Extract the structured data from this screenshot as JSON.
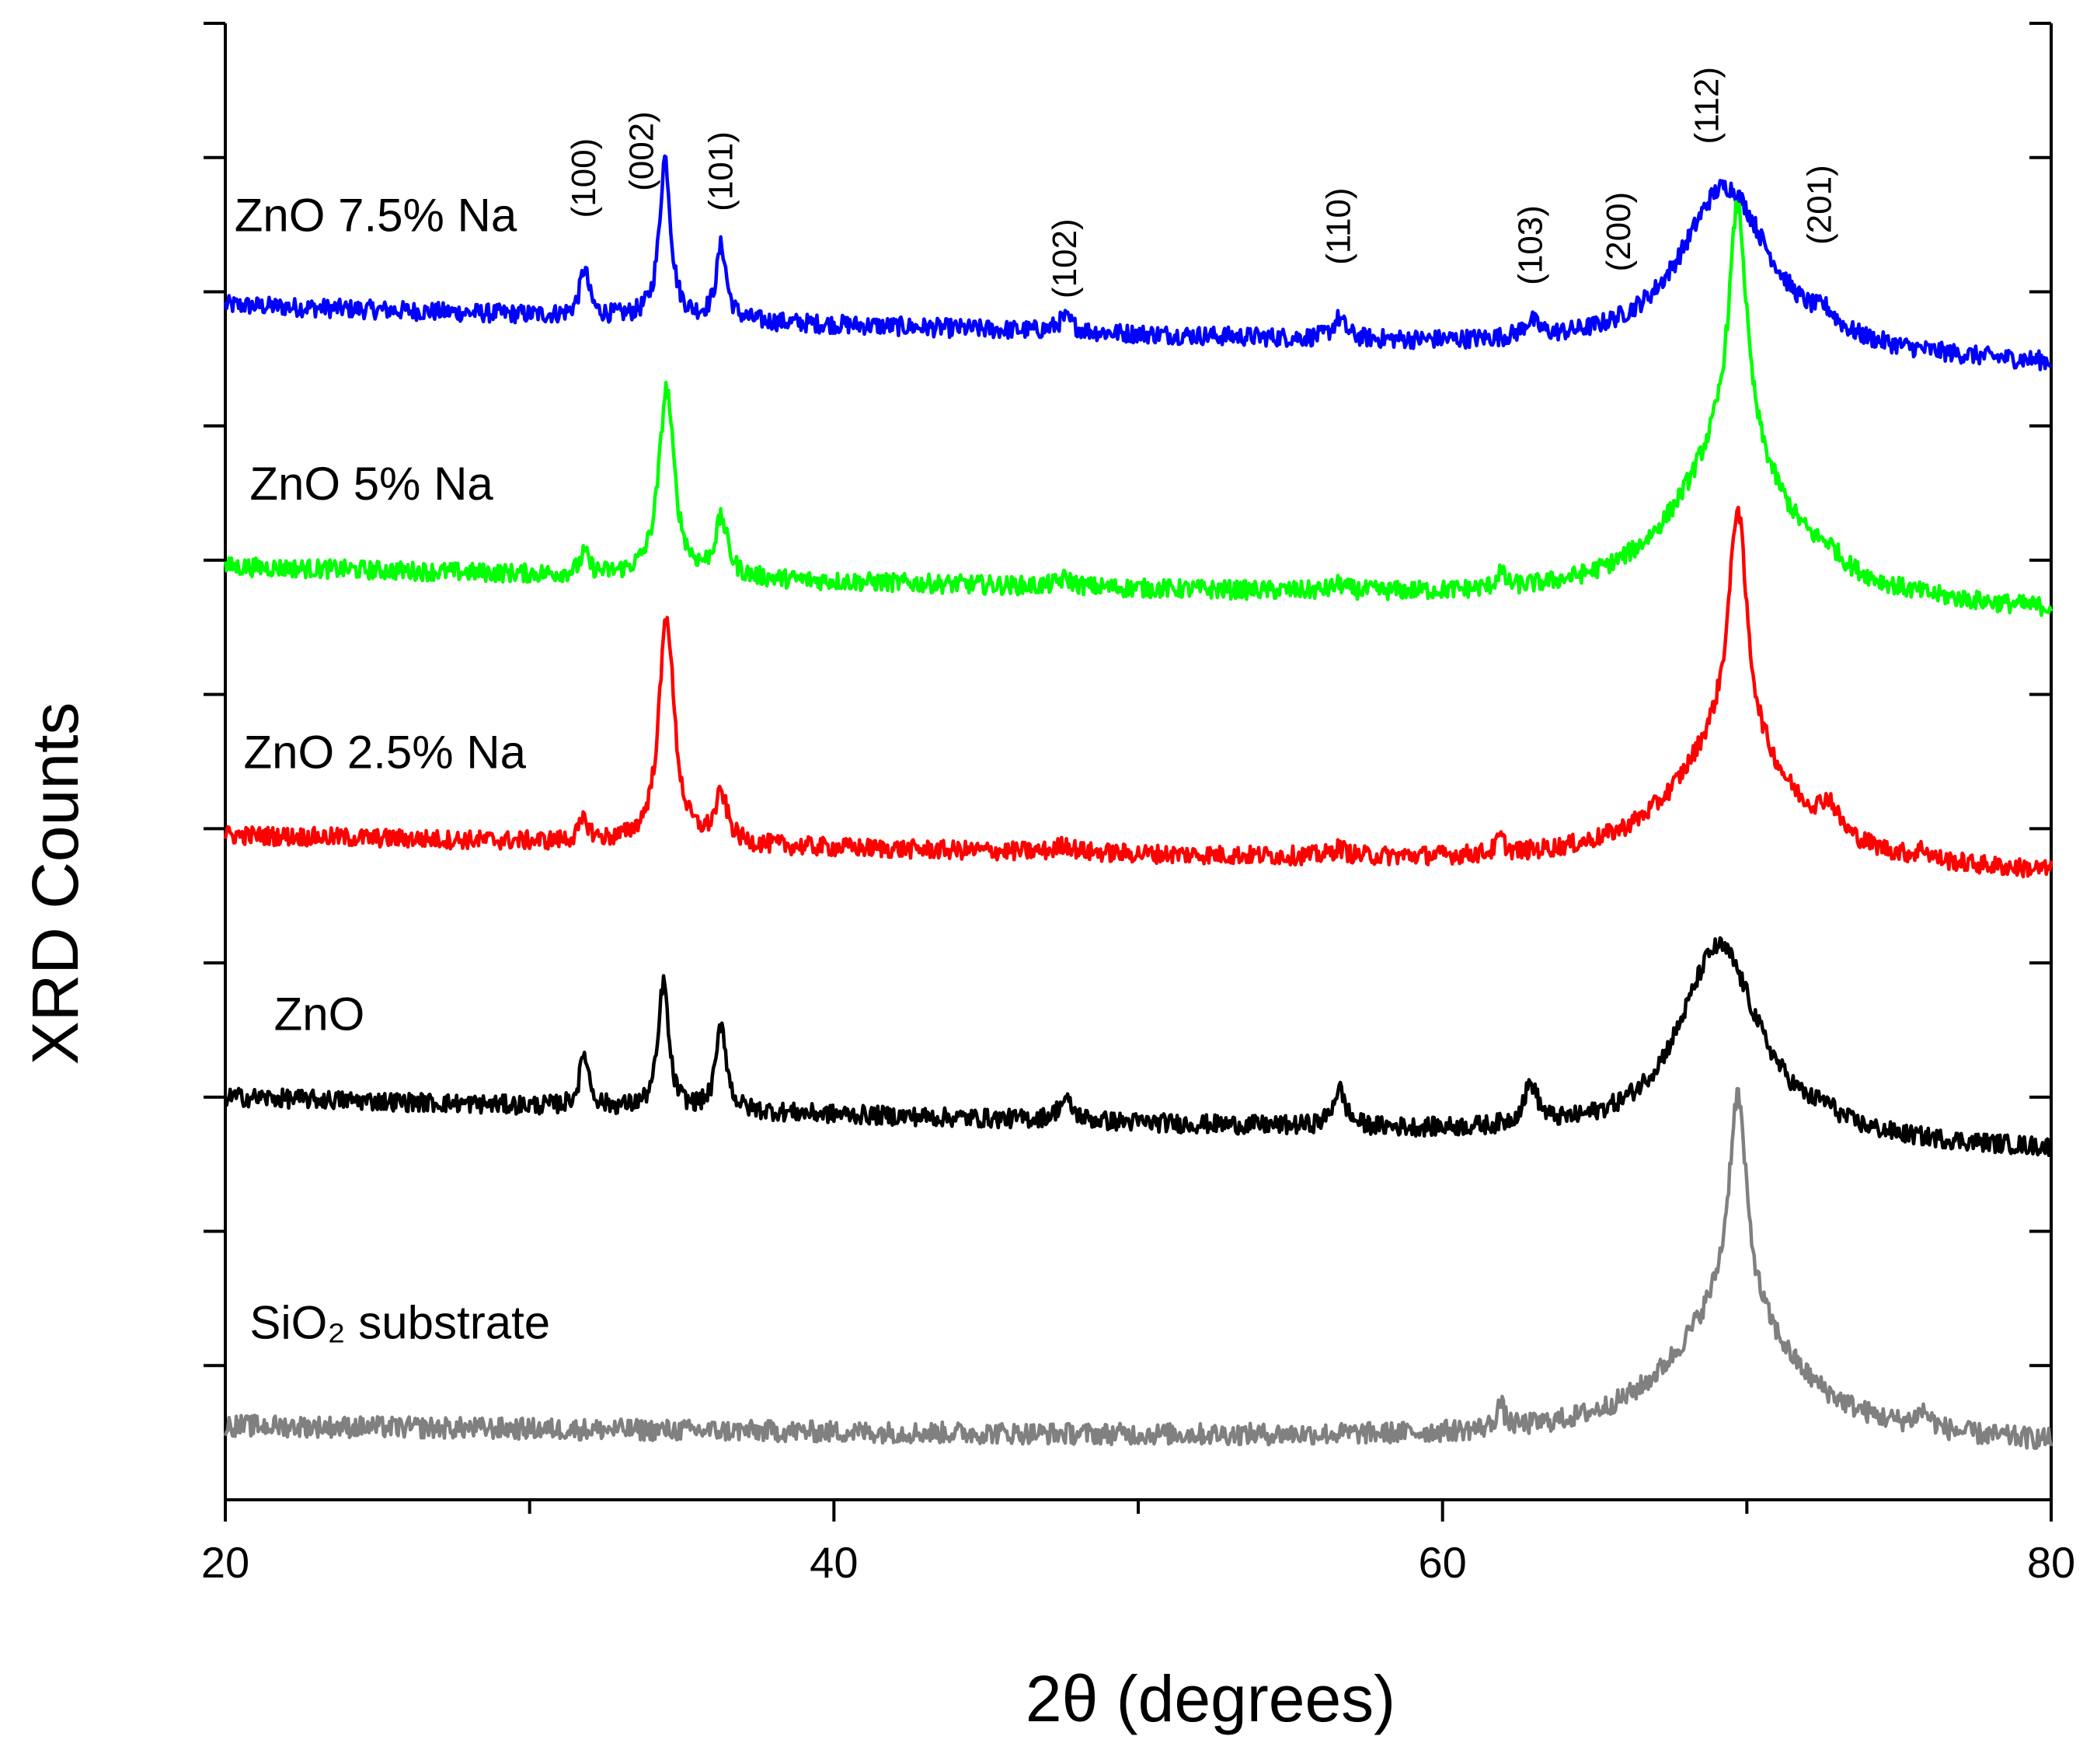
{
  "chart_data": {
    "type": "line",
    "title": "",
    "xlabel": "2θ (degrees)",
    "ylabel": "XRD Counts",
    "xlim": [
      20,
      80
    ],
    "x_ticks": [
      20,
      40,
      60,
      80
    ],
    "y_ticks_labeled": false,
    "grid": false,
    "legend": "inline labels on left",
    "series": [
      {
        "name": "ZnO 7.5% Na",
        "color": "#0000ff",
        "baseline_start": 8.9,
        "baseline_end": 8.45,
        "noise": 0.07,
        "peaks": [
          {
            "x": 31.8,
            "height": 0.35,
            "width": 0.18
          },
          {
            "x": 34.45,
            "height": 1.2,
            "width": 0.22
          },
          {
            "x": 36.3,
            "height": 0.55,
            "width": 0.2
          },
          {
            "x": 47.6,
            "height": 0.1,
            "width": 0.3
          },
          {
            "x": 56.6,
            "height": 0.15,
            "width": 0.25
          },
          {
            "x": 62.9,
            "height": 0.12,
            "width": 0.3
          },
          {
            "x": 69.3,
            "height": 1.25,
            "width": 1.8
          },
          {
            "x": 72.6,
            "height": 0.1,
            "width": 0.4
          }
        ]
      },
      {
        "name": "ZnO 5% Na",
        "color": "#00ff00",
        "baseline_start": 6.95,
        "baseline_end": 6.6,
        "noise": 0.07,
        "peaks": [
          {
            "x": 31.8,
            "height": 0.15,
            "width": 0.18
          },
          {
            "x": 34.5,
            "height": 1.4,
            "width": 0.3
          },
          {
            "x": 36.3,
            "height": 0.42,
            "width": 0.25
          },
          {
            "x": 47.6,
            "height": 0.06,
            "width": 0.3
          },
          {
            "x": 56.6,
            "height": 0.05,
            "width": 0.25
          },
          {
            "x": 61.9,
            "height": 0.12,
            "width": 0.15
          },
          {
            "x": 69.7,
            "height": 1.8,
            "width": 0.35
          },
          {
            "x": 69.5,
            "height": 1.2,
            "width": 2.2
          },
          {
            "x": 72.7,
            "height": 0.08,
            "width": 0.4
          }
        ]
      },
      {
        "name": "ZnO 2.5% Na",
        "color": "#ff0000",
        "baseline_start": 4.95,
        "baseline_end": 4.65,
        "noise": 0.07,
        "peaks": [
          {
            "x": 31.8,
            "height": 0.15,
            "width": 0.2
          },
          {
            "x": 34.5,
            "height": 1.7,
            "width": 0.3
          },
          {
            "x": 36.3,
            "height": 0.35,
            "width": 0.25
          },
          {
            "x": 47.6,
            "height": 0.06,
            "width": 0.3
          },
          {
            "x": 56.6,
            "height": 0.06,
            "width": 0.25
          },
          {
            "x": 61.9,
            "height": 0.12,
            "width": 0.15
          },
          {
            "x": 69.7,
            "height": 1.7,
            "width": 0.35
          },
          {
            "x": 69.5,
            "height": 1.0,
            "width": 2.2
          },
          {
            "x": 72.7,
            "height": 0.2,
            "width": 0.35
          },
          {
            "x": 75.8,
            "height": 0.07,
            "width": 0.2
          }
        ]
      },
      {
        "name": "ZnO",
        "color": "#000000",
        "baseline_start": 3.0,
        "baseline_end": 2.6,
        "noise": 0.07,
        "peaks": [
          {
            "x": 31.8,
            "height": 0.4,
            "width": 0.18
          },
          {
            "x": 34.4,
            "height": 0.95,
            "width": 0.2
          },
          {
            "x": 36.3,
            "height": 0.65,
            "width": 0.2
          },
          {
            "x": 47.6,
            "height": 0.15,
            "width": 0.3
          },
          {
            "x": 56.6,
            "height": 0.28,
            "width": 0.25
          },
          {
            "x": 62.9,
            "height": 0.3,
            "width": 0.28
          },
          {
            "x": 69.1,
            "height": 1.45,
            "width": 1.6
          },
          {
            "x": 72.6,
            "height": 0.07,
            "width": 0.4
          }
        ]
      },
      {
        "name": "SiO₂ substrate",
        "color": "#808080",
        "baseline_start": 0.55,
        "baseline_end": 0.4,
        "noise": 0.08,
        "peaks": [
          {
            "x": 61.9,
            "height": 0.18,
            "width": 0.15
          },
          {
            "x": 69.7,
            "height": 1.6,
            "width": 0.35
          },
          {
            "x": 69.5,
            "height": 1.0,
            "width": 2.4
          },
          {
            "x": 75.8,
            "height": 0.12,
            "width": 0.3
          }
        ]
      }
    ],
    "series_labels": [
      "ZnO 7.5% Na",
      "ZnO 5% Na",
      "ZnO 2.5% Na",
      "ZnO",
      "SiO₂ substrate"
    ],
    "peak_annotations": [
      {
        "label": "(100)",
        "x": 31.8
      },
      {
        "label": "(002)",
        "x": 33.7
      },
      {
        "label": "(101)",
        "x": 36.3
      },
      {
        "label": "(102)",
        "x": 47.6
      },
      {
        "label": "(110)",
        "x": 56.6
      },
      {
        "label": "(103)",
        "x": 62.9
      },
      {
        "label": "(200)",
        "x": 65.8
      },
      {
        "label": "(112)",
        "x": 68.7
      },
      {
        "label": "(201)",
        "x": 72.4
      }
    ]
  }
}
